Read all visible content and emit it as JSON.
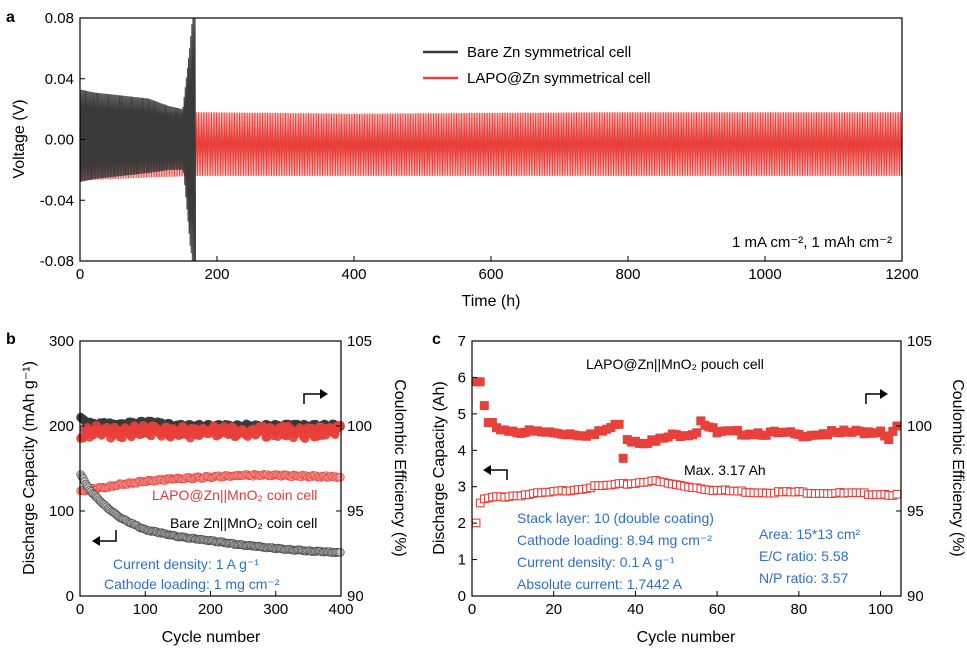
{
  "colors": {
    "black": "#3a3a3a",
    "red": "#e8403a",
    "blue": "#2f6fd0",
    "hollow": "#e8403a"
  },
  "chart_data": [
    {
      "panel": "a",
      "type": "line",
      "xlabel": "Time (h)",
      "ylabel": "Voltage (V)",
      "xlim": [
        0,
        1200
      ],
      "ylim": [
        -0.08,
        0.08
      ],
      "xticks": [
        "0",
        "200",
        "400",
        "600",
        "800",
        "1000",
        "1200"
      ],
      "yticks": [
        "0.08",
        "0.04",
        "0.00",
        "-0.04",
        "-0.08"
      ],
      "annotation": "1 mA cm⁻², 1 mAh cm⁻²",
      "series": [
        {
          "name": "Bare Zn symmetrical cell",
          "color": "#3a3a3a",
          "envelope": {
            "t": [
              0,
              20,
              60,
              100,
              130,
              150,
              160,
              165,
              168
            ],
            "upper": [
              0.033,
              0.031,
              0.029,
              0.027,
              0.022,
              0.02,
              0.06,
              0.085,
              0.085
            ],
            "lower": [
              -0.028,
              -0.026,
              -0.024,
              -0.022,
              -0.02,
              -0.02,
              -0.07,
              -0.085,
              -0.085
            ]
          }
        },
        {
          "name": "LAPO@Zn symmetrical cell",
          "color": "#e8403a",
          "envelope": {
            "t": [
              0,
              100,
              170,
              400,
              800,
              1200
            ],
            "upper": [
              0.015,
              0.017,
              0.018,
              0.017,
              0.018,
              0.018
            ],
            "lower": [
              -0.027,
              -0.025,
              -0.024,
              -0.024,
              -0.024,
              -0.024
            ]
          }
        }
      ]
    },
    {
      "panel": "b",
      "type": "scatter",
      "xlabel": "Cycle number",
      "ylabel": "Discharge Capacity (mAh g⁻¹)",
      "ylabel_right": "Coulombic Efficiency (%)",
      "xlim": [
        0,
        400
      ],
      "ylim": [
        0,
        300
      ],
      "ylim_right": [
        90,
        105
      ],
      "xticks": [
        "0",
        "100",
        "200",
        "300",
        "400"
      ],
      "yticks": [
        "0",
        "100",
        "200",
        "300"
      ],
      "yticks_right": [
        "90",
        "95",
        "100",
        "105"
      ],
      "series": [
        {
          "name": "LAPO@Zn||MnO2 coin cell capacity",
          "axis": "left",
          "x": [
            1,
            10,
            20,
            40,
            60,
            80,
            100,
            150,
            200,
            250,
            300,
            350,
            400
          ],
          "y": [
            123,
            125,
            126,
            128,
            131,
            133,
            135,
            138,
            140,
            142,
            142,
            141,
            140
          ]
        },
        {
          "name": "Bare Zn||MnO2 coin cell capacity",
          "axis": "left",
          "x": [
            1,
            5,
            10,
            20,
            40,
            60,
            80,
            100,
            150,
            200,
            250,
            300,
            350,
            400
          ],
          "y": [
            143,
            138,
            130,
            120,
            105,
            93,
            85,
            78,
            70,
            65,
            60,
            56,
            53,
            51
          ]
        },
        {
          "name": "LAPO@Zn||MnO2 coin cell CE",
          "axis": "right",
          "x": [
            1,
            20,
            50,
            100,
            150,
            200,
            250,
            300,
            350,
            400
          ],
          "y": [
            99.6,
            99.7,
            99.6,
            99.7,
            99.6,
            99.7,
            99.6,
            99.7,
            99.6,
            99.7
          ]
        },
        {
          "name": "Bare Zn||MnO2 coin cell CE",
          "axis": "right",
          "x": [
            1,
            20,
            50,
            100,
            150,
            200,
            250,
            300,
            350,
            400
          ],
          "y": [
            100.4,
            100.1,
            100.1,
            100.2,
            100.0,
            100.0,
            100.0,
            100.0,
            100.0,
            100.0
          ]
        }
      ],
      "labels": {
        "lapo": "LAPO@Zn||MnO₂ coin cell",
        "bare": "Bare Zn||MnO₂ coin cell",
        "current_density": "Current density: 1 A g⁻¹",
        "cathode_loading": "Cathode loading: 1 mg cm⁻²"
      }
    },
    {
      "panel": "c",
      "type": "scatter",
      "title": "LAPO@Zn||MnO₂ pouch cell",
      "xlabel": "Cycle number",
      "ylabel": "Discharge Capacity (Ah)",
      "ylabel_right": "Coulombic Efficiency (%)",
      "xlim": [
        0,
        105
      ],
      "ylim": [
        0,
        7
      ],
      "ylim_right": [
        90,
        105
      ],
      "xticks": [
        "0",
        "20",
        "40",
        "60",
        "80",
        "100"
      ],
      "yticks": [
        "0",
        "1",
        "2",
        "3",
        "4",
        "5",
        "6",
        "7"
      ],
      "yticks_right": [
        "90",
        "95",
        "100",
        "105"
      ],
      "annotation_max": "Max. 3.17 Ah",
      "series": [
        {
          "name": "Discharge capacity",
          "axis": "left",
          "marker": "hollow-square",
          "x": [
            1,
            2,
            3,
            5,
            10,
            20,
            30,
            40,
            44,
            50,
            60,
            70,
            80,
            90,
            100,
            104
          ],
          "y": [
            1.98,
            2.55,
            2.65,
            2.7,
            2.75,
            2.85,
            3.0,
            3.1,
            3.17,
            3.05,
            2.9,
            2.85,
            2.85,
            2.82,
            2.8,
            2.78
          ]
        },
        {
          "name": "Coulombic efficiency",
          "axis": "right",
          "marker": "filled-square",
          "x": [
            1,
            2,
            3,
            4,
            6,
            10,
            20,
            30,
            36,
            37,
            38,
            40,
            45,
            50,
            55,
            56,
            60,
            70,
            80,
            90,
            100,
            102,
            104
          ],
          "y": [
            102.6,
            102.6,
            101.2,
            100.2,
            99.9,
            99.7,
            99.6,
            99.5,
            100.1,
            98.1,
            99.2,
            99.1,
            99.1,
            99.5,
            99.6,
            100.3,
            99.6,
            99.6,
            99.5,
            99.6,
            99.7,
            99.2,
            100.0
          ]
        }
      ],
      "labels": {
        "stack": "Stack layer: 10 (double coating)",
        "loading": "Cathode loading: 8.94 mg cm⁻²",
        "density": "Current density: 0.1 A g⁻¹",
        "absolute": "Absolute current: 1.7442 A",
        "area": "Area: 15*13 cm²",
        "ec": "E/C ratio: 5.58",
        "np": "N/P ratio: 3.57"
      }
    }
  ],
  "panel_labels": {
    "a": "a",
    "b": "b",
    "c": "c"
  }
}
